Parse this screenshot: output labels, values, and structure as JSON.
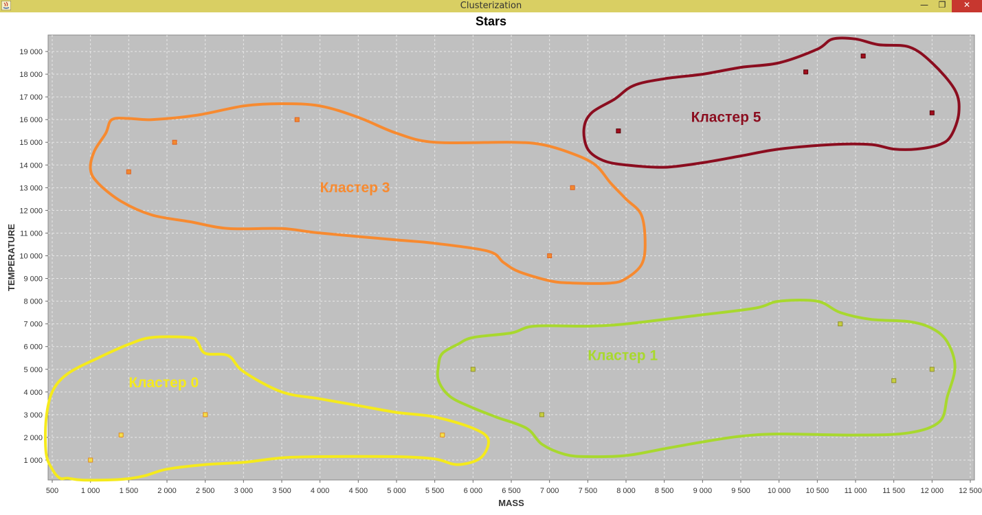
{
  "window": {
    "title": "Clusterization",
    "minimize_label": "—",
    "maximize_label": "❐",
    "close_label": "✕"
  },
  "chart_data": {
    "type": "scatter",
    "title": "Stars",
    "xlabel": "MASS",
    "ylabel": "TEMPERATURE",
    "xlim": [
      500,
      12500
    ],
    "ylim": [
      0,
      19500
    ],
    "grid": true,
    "x_ticks": [
      500,
      1000,
      1500,
      2000,
      2500,
      3000,
      3500,
      4000,
      4500,
      5000,
      5500,
      6000,
      6500,
      7000,
      7500,
      8000,
      8500,
      9000,
      9500,
      10000,
      10500,
      11000,
      11500,
      12000,
      12500
    ],
    "x_tick_labels": [
      "500",
      "1 000",
      "1 500",
      "2 000",
      "2 500",
      "3 000",
      "3 500",
      "4 000",
      "4 500",
      "5 000",
      "5 500",
      "6 000",
      "6 500",
      "7 000",
      "7 500",
      "8 000",
      "8 500",
      "9 000",
      "9 500",
      "10 000",
      "10 500",
      "11 000",
      "11 500",
      "12 000",
      "12 500"
    ],
    "y_ticks": [
      1000,
      2000,
      3000,
      4000,
      5000,
      6000,
      7000,
      8000,
      9000,
      10000,
      11000,
      12000,
      13000,
      14000,
      15000,
      16000,
      17000,
      18000,
      19000
    ],
    "y_tick_labels": [
      "1 000",
      "2 000",
      "3 000",
      "4 000",
      "5 000",
      "6 000",
      "7 000",
      "8 000",
      "9 000",
      "10 000",
      "11 000",
      "12 000",
      "13 000",
      "14 000",
      "15 000",
      "16 000",
      "17 000",
      "18 000",
      "19 000"
    ],
    "colors": {
      "plot_bg": "#c0c0c0",
      "grid": "#e8e8e8"
    },
    "clusters": [
      {
        "name": "Кластер 0",
        "color": "#f5ea1c",
        "point_fill": "#f5e04a",
        "point_stroke": "#e08a20",
        "label_pos": [
          1500,
          4200
        ],
        "points": [
          [
            1000,
            1000
          ],
          [
            1400,
            2100
          ],
          [
            2500,
            3000
          ],
          [
            5600,
            2100
          ]
        ],
        "outline": [
          [
            600,
            200
          ],
          [
            700,
            200
          ],
          [
            900,
            120
          ],
          [
            1400,
            150
          ],
          [
            1700,
            300
          ],
          [
            2000,
            600
          ],
          [
            2500,
            800
          ],
          [
            3000,
            900
          ],
          [
            3500,
            1100
          ],
          [
            4000,
            1150
          ],
          [
            5000,
            1150
          ],
          [
            5500,
            1050
          ],
          [
            5800,
            800
          ],
          [
            6100,
            1100
          ],
          [
            6200,
            1900
          ],
          [
            6000,
            2400
          ],
          [
            5500,
            2900
          ],
          [
            5000,
            3100
          ],
          [
            4500,
            3400
          ],
          [
            4000,
            3700
          ],
          [
            3500,
            4000
          ],
          [
            3000,
            4900
          ],
          [
            2800,
            5600
          ],
          [
            2500,
            5700
          ],
          [
            2400,
            6200
          ],
          [
            2300,
            6400
          ],
          [
            1800,
            6400
          ],
          [
            1500,
            6100
          ],
          [
            1100,
            5500
          ],
          [
            700,
            4800
          ],
          [
            500,
            4000
          ],
          [
            420,
            2800
          ],
          [
            420,
            1300
          ],
          [
            500,
            600
          ]
        ]
      },
      {
        "name": "Кластер 1",
        "color": "#a8d82e",
        "point_fill": "#c8d040",
        "point_stroke": "#8f8f2a",
        "label_pos": [
          7500,
          5400
        ],
        "points": [
          [
            6000,
            5000
          ],
          [
            6900,
            3000
          ],
          [
            10800,
            7000
          ],
          [
            11500,
            4500
          ],
          [
            12000,
            5000
          ]
        ],
        "outline": [
          [
            5550,
            5200
          ],
          [
            5600,
            5700
          ],
          [
            5800,
            6100
          ],
          [
            6000,
            6400
          ],
          [
            6500,
            6600
          ],
          [
            6800,
            6900
          ],
          [
            7500,
            6900
          ],
          [
            8000,
            7000
          ],
          [
            9000,
            7400
          ],
          [
            9700,
            7700
          ],
          [
            10000,
            8000
          ],
          [
            10500,
            8000
          ],
          [
            10800,
            7500
          ],
          [
            11200,
            7200
          ],
          [
            11700,
            7100
          ],
          [
            12000,
            6800
          ],
          [
            12200,
            6200
          ],
          [
            12300,
            5100
          ],
          [
            12200,
            3800
          ],
          [
            12100,
            2700
          ],
          [
            11700,
            2200
          ],
          [
            11000,
            2100
          ],
          [
            10000,
            2150
          ],
          [
            9500,
            2050
          ],
          [
            9000,
            1800
          ],
          [
            8500,
            1500
          ],
          [
            8000,
            1200
          ],
          [
            7500,
            1150
          ],
          [
            7200,
            1250
          ],
          [
            6900,
            1700
          ],
          [
            6700,
            2400
          ],
          [
            6300,
            2900
          ],
          [
            6000,
            3300
          ],
          [
            5700,
            3800
          ],
          [
            5550,
            4500
          ]
        ]
      },
      {
        "name": "Кластер 3",
        "color": "#f78a30",
        "point_fill": "#f28a30",
        "point_stroke": "#e06020",
        "label_pos": [
          4000,
          12800
        ],
        "points": [
          [
            1500,
            13700
          ],
          [
            2100,
            15000
          ],
          [
            3700,
            16000
          ],
          [
            7300,
            13000
          ],
          [
            7000,
            10000
          ]
        ],
        "outline": [
          [
            1280,
            16000
          ],
          [
            1500,
            16050
          ],
          [
            1800,
            16000
          ],
          [
            2400,
            16200
          ],
          [
            3000,
            16600
          ],
          [
            3500,
            16700
          ],
          [
            4000,
            16600
          ],
          [
            4500,
            16100
          ],
          [
            5000,
            15400
          ],
          [
            5500,
            15000
          ],
          [
            6500,
            15000
          ],
          [
            6900,
            14900
          ],
          [
            7300,
            14500
          ],
          [
            7600,
            14000
          ],
          [
            7800,
            13200
          ],
          [
            8000,
            12500
          ],
          [
            8200,
            11800
          ],
          [
            8250,
            10500
          ],
          [
            8200,
            9600
          ],
          [
            8000,
            9000
          ],
          [
            7800,
            8800
          ],
          [
            7300,
            8800
          ],
          [
            7000,
            8900
          ],
          [
            6600,
            9300
          ],
          [
            6400,
            9700
          ],
          [
            6200,
            10200
          ],
          [
            5500,
            10550
          ],
          [
            5000,
            10700
          ],
          [
            4000,
            11000
          ],
          [
            3500,
            11200
          ],
          [
            2800,
            11200
          ],
          [
            2300,
            11500
          ],
          [
            1800,
            11800
          ],
          [
            1400,
            12400
          ],
          [
            1100,
            13200
          ],
          [
            1000,
            13800
          ],
          [
            1050,
            14600
          ],
          [
            1200,
            15400
          ]
        ]
      },
      {
        "name": "Кластер 5",
        "color": "#8b0d1f",
        "point_fill": "#a10d1d",
        "point_stroke": "#5a0008",
        "label_pos": [
          8850,
          15900
        ],
        "points": [
          [
            7900,
            15500
          ],
          [
            10350,
            18100
          ],
          [
            11100,
            18800
          ],
          [
            12000,
            16300
          ]
        ],
        "outline": [
          [
            7850,
            16900
          ],
          [
            8100,
            17500
          ],
          [
            8500,
            17800
          ],
          [
            9000,
            18000
          ],
          [
            9500,
            18300
          ],
          [
            10000,
            18500
          ],
          [
            10500,
            19100
          ],
          [
            10700,
            19550
          ],
          [
            11000,
            19550
          ],
          [
            11300,
            19300
          ],
          [
            11700,
            19200
          ],
          [
            12000,
            18500
          ],
          [
            12300,
            17300
          ],
          [
            12350,
            16300
          ],
          [
            12250,
            15300
          ],
          [
            12100,
            14900
          ],
          [
            11800,
            14700
          ],
          [
            11500,
            14700
          ],
          [
            11200,
            14900
          ],
          [
            10700,
            14900
          ],
          [
            10000,
            14700
          ],
          [
            9500,
            14400
          ],
          [
            9000,
            14100
          ],
          [
            8500,
            13900
          ],
          [
            8000,
            14000
          ],
          [
            7700,
            14200
          ],
          [
            7500,
            14700
          ],
          [
            7450,
            15600
          ],
          [
            7550,
            16300
          ]
        ]
      }
    ]
  }
}
